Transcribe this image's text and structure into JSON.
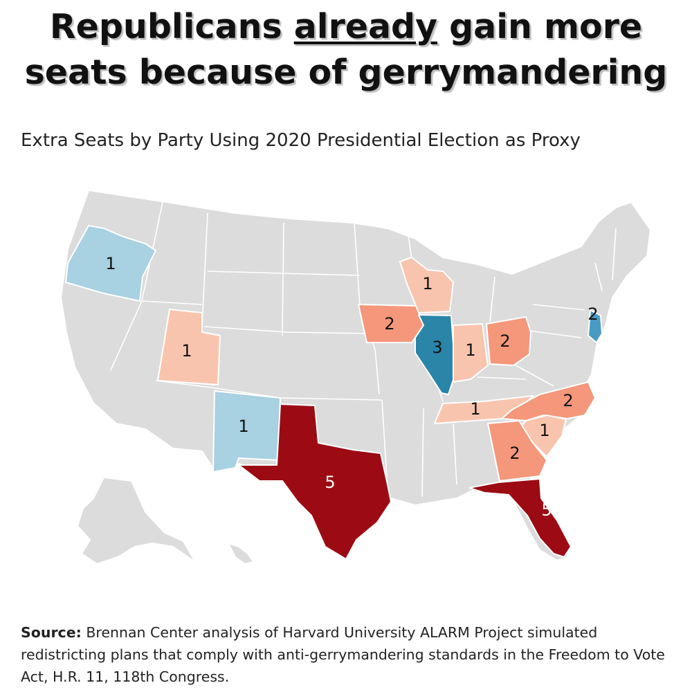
{
  "title": {
    "line1_part1": "Republicans ",
    "line1_emphasis": "already",
    "line1_part2": " gain more",
    "line2": "seats because of gerrymandering"
  },
  "subtitle": "Extra Seats by Party Using 2020 Presidential Election as Proxy",
  "colors": {
    "land": "#dcdcdc",
    "dem_1": "#a8d1e2",
    "dem_2": "#4a9bc4",
    "dem_3": "#2a85a8",
    "rep_1": "#f9c4ae",
    "rep_2": "#f4977b",
    "rep_5": "#9c0b14"
  },
  "states": [
    {
      "name": "Oregon",
      "party": "Democratic",
      "seats": "1"
    },
    {
      "name": "Utah",
      "party": "Republican",
      "seats": "1"
    },
    {
      "name": "New Mexico",
      "party": "Democratic",
      "seats": "1"
    },
    {
      "name": "Texas",
      "party": "Republican",
      "seats": "5"
    },
    {
      "name": "Iowa",
      "party": "Republican",
      "seats": "2"
    },
    {
      "name": "Wisconsin",
      "party": "Republican",
      "seats": "1"
    },
    {
      "name": "Illinois",
      "party": "Democratic",
      "seats": "3"
    },
    {
      "name": "Indiana",
      "party": "Republican",
      "seats": "1"
    },
    {
      "name": "Ohio",
      "party": "Republican",
      "seats": "2"
    },
    {
      "name": "New Jersey",
      "party": "Democratic",
      "seats": "2"
    },
    {
      "name": "Tennessee",
      "party": "Republican",
      "seats": "1"
    },
    {
      "name": "North Carolina",
      "party": "Republican",
      "seats": "2"
    },
    {
      "name": "South Carolina",
      "party": "Republican",
      "seats": "1"
    },
    {
      "name": "Georgia",
      "party": "Republican",
      "seats": "2"
    },
    {
      "name": "Florida",
      "party": "Republican",
      "seats": "5"
    }
  ],
  "source": {
    "label": "Source:",
    "text": " Brennan Center analysis of Harvard University ALARM Project simulated redistricting plans that comply with anti-gerrymandering standards in the Freedom to Vote Act, H.R. 11, 118th Congress."
  }
}
